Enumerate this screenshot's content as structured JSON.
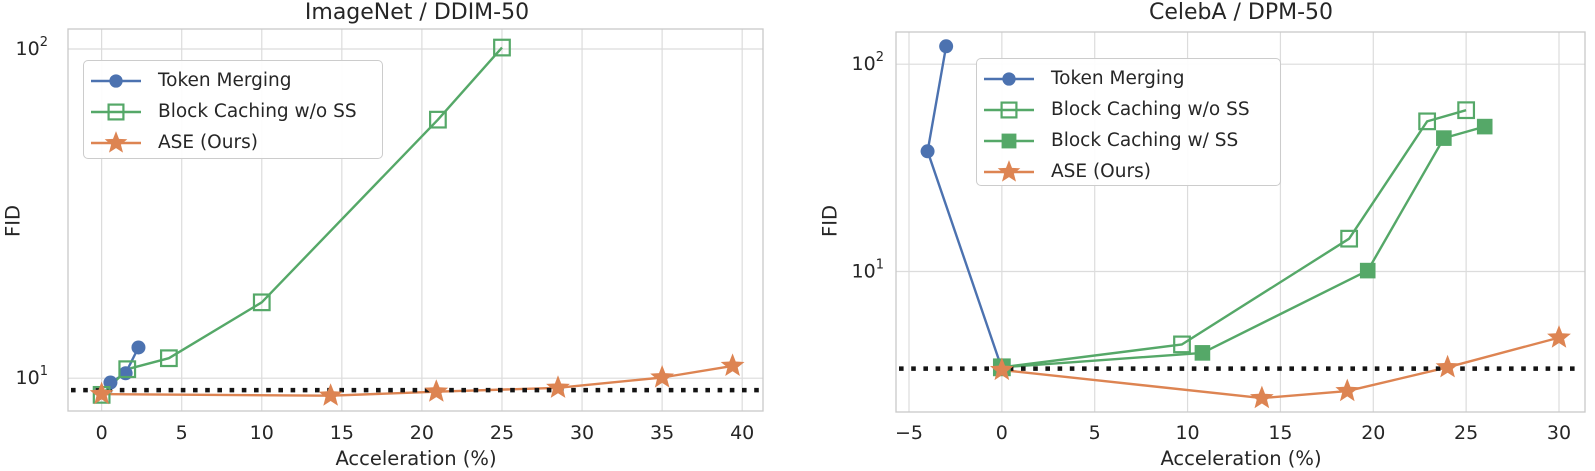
{
  "colors": {
    "token_merging_blue": "#4C72B0",
    "block_caching_green": "#55A868",
    "ase_orange": "#DD8452",
    "baseline_black": "#141414",
    "grid": "#DCDCDC",
    "spine": "#C9C9C9",
    "text": "#262626"
  },
  "chart_data": [
    {
      "type": "line",
      "title": "ImageNet / DDIM-50",
      "xlabel": "Acceleration (%)",
      "ylabel": "FID",
      "xscale": "linear",
      "yscale": "log",
      "xlim": [
        -2.1,
        41.3
      ],
      "ylim": [
        7.95,
        115
      ],
      "grid": true,
      "legend_position": "upper left",
      "xticks": [
        {
          "v": 0,
          "label": "0"
        },
        {
          "v": 5,
          "label": "5"
        },
        {
          "v": 10,
          "label": "10"
        },
        {
          "v": 15,
          "label": "15"
        },
        {
          "v": 20,
          "label": "20"
        },
        {
          "v": 25,
          "label": "25"
        },
        {
          "v": 30,
          "label": "30"
        },
        {
          "v": 35,
          "label": "35"
        },
        {
          "v": 40,
          "label": "40"
        }
      ],
      "yticks": [
        {
          "v": 10,
          "base": "10",
          "exp": "1"
        },
        {
          "v": 100,
          "base": "10",
          "exp": "2"
        }
      ],
      "baseline": 9.2,
      "series": [
        {
          "name": "Token Merging",
          "marker": "circle",
          "color": "#4C72B0",
          "points": [
            [
              0.55,
              9.7
            ],
            [
              1.5,
              10.35
            ],
            [
              2.3,
              12.4
            ]
          ]
        },
        {
          "name": "Block Caching w/o SS",
          "marker": "open-square",
          "color": "#55A868",
          "points": [
            [
              0,
              8.9
            ],
            [
              1.6,
              10.65
            ],
            [
              4.2,
              11.5
            ],
            [
              10,
              17
            ],
            [
              21,
              61
            ],
            [
              25,
              101
            ]
          ]
        },
        {
          "name": "ASE (Ours)",
          "marker": "star",
          "color": "#DD8452",
          "points": [
            [
              0,
              8.95
            ],
            [
              14.3,
              8.85
            ],
            [
              20.9,
              9.1
            ],
            [
              28.5,
              9.35
            ],
            [
              35,
              10.05
            ],
            [
              39.4,
              10.9
            ]
          ]
        }
      ]
    },
    {
      "type": "line",
      "title": "CelebA / DPM-50",
      "xlabel": "Acceleration (%)",
      "ylabel": "FID",
      "xscale": "linear",
      "yscale": "log",
      "xlim": [
        -5.7,
        31.4
      ],
      "ylim": [
        2.1,
        143
      ],
      "grid": true,
      "legend_position": "upper left",
      "xticks": [
        {
          "v": -5,
          "label": "−5"
        },
        {
          "v": 0,
          "label": "0"
        },
        {
          "v": 5,
          "label": "5"
        },
        {
          "v": 10,
          "label": "10"
        },
        {
          "v": 15,
          "label": "15"
        },
        {
          "v": 20,
          "label": "20"
        },
        {
          "v": 25,
          "label": "25"
        },
        {
          "v": 30,
          "label": "30"
        }
      ],
      "yticks": [
        {
          "v": 10,
          "base": "10",
          "exp": "1"
        },
        {
          "v": 100,
          "base": "10",
          "exp": "2"
        }
      ],
      "baseline": 3.4,
      "series": [
        {
          "name": "Token Merging",
          "marker": "circle",
          "color": "#4C72B0",
          "points": [
            [
              -3,
              122
            ],
            [
              -4,
              38
            ],
            [
              0,
              3.4
            ]
          ]
        },
        {
          "name": "Block Caching w/o SS",
          "marker": "open-square",
          "color": "#55A868",
          "points": [
            [
              0,
              3.45
            ],
            [
              9.7,
              4.45
            ],
            [
              18.7,
              14.4
            ],
            [
              22.9,
              53
            ],
            [
              25,
              60
            ]
          ]
        },
        {
          "name": "Block Caching w/ SS",
          "marker": "square",
          "color": "#55A868",
          "points": [
            [
              0,
              3.45
            ],
            [
              10.8,
              4.05
            ],
            [
              19.7,
              10.1
            ],
            [
              23.8,
              44
            ],
            [
              26,
              50
            ]
          ]
        },
        {
          "name": "ASE (Ours)",
          "marker": "star",
          "color": "#DD8452",
          "points": [
            [
              0,
              3.35
            ],
            [
              14,
              2.45
            ],
            [
              18.6,
              2.65
            ],
            [
              24,
              3.45
            ],
            [
              30,
              4.8
            ]
          ]
        }
      ]
    }
  ]
}
